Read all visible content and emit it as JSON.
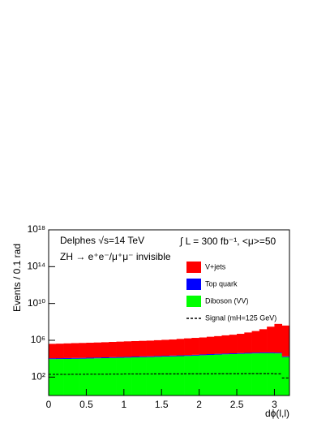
{
  "chart_data": {
    "type": "stacked-histogram",
    "x_label": "dϕ(l,l)",
    "y_label": "Events / 0.1 rad",
    "annotations": [
      "Delphes √s=14 TeV",
      "ZH → e⁺e⁻/μ⁺μ⁻ invisible",
      "∫ L = 300 fb⁻¹, <μ>=50"
    ],
    "bins": [
      0,
      0.1,
      0.2,
      0.3,
      0.4,
      0.5,
      0.6,
      0.7,
      0.8,
      0.9,
      1,
      1.1,
      1.2,
      1.3,
      1.4,
      1.5,
      1.6,
      1.7,
      1.8,
      1.9,
      2,
      2.1,
      2.2,
      2.3,
      2.4,
      2.5,
      2.6,
      2.7,
      2.8,
      2.9,
      3,
      3.1,
      3.2
    ],
    "series": [
      {
        "name": "Diboson (VV)",
        "color": "#00ff00",
        "values": [
          9000,
          9200,
          9500,
          9800,
          10000,
          10500,
          11000,
          11500,
          12000,
          12500,
          13000,
          14000,
          14500,
          15000,
          16000,
          17000,
          18000,
          19000,
          20000,
          22000,
          24000,
          26000,
          28000,
          30000,
          32000,
          34000,
          36000,
          38000,
          40000,
          40000,
          38000,
          15000
        ]
      },
      {
        "name": "Top quark",
        "color": "#0000ff",
        "values": [
          2000,
          2000,
          2100,
          2100,
          2200,
          2300,
          2400,
          2500,
          2600,
          2700,
          2800,
          3000,
          3100,
          3200,
          3400,
          3600,
          3800,
          4000,
          4200,
          4600,
          5000,
          5400,
          5800,
          6200,
          6600,
          7000,
          7400,
          7800,
          8000,
          8000,
          7600,
          3000
        ]
      },
      {
        "name": "V+jets",
        "color": "#ff0000",
        "values": [
          400000,
          420000,
          450000,
          480000,
          500000,
          530000,
          560000,
          600000,
          650000,
          700000,
          750000,
          800000,
          850000,
          900000,
          1000000,
          1100000,
          1200000,
          1400000,
          1600000,
          1800000,
          2000000,
          2400000,
          2800000,
          3400000,
          4000000,
          5000000,
          7000000,
          10000000,
          16000000,
          30000000,
          60000000,
          40000000
        ]
      },
      {
        "name": "Signal (mH=125 GeV)",
        "color": "#000000",
        "style": "dashed",
        "values": [
          200,
          200,
          200,
          205,
          205,
          210,
          210,
          210,
          215,
          215,
          220,
          220,
          220,
          220,
          225,
          225,
          225,
          225,
          230,
          230,
          230,
          230,
          235,
          235,
          235,
          235,
          240,
          240,
          240,
          240,
          230,
          80
        ]
      }
    ],
    "legend_order": [
      2,
      1,
      0,
      3
    ],
    "xlim": [
      0,
      3.2
    ],
    "xticks": [
      0,
      0.5,
      1,
      1.5,
      2,
      2.5,
      3
    ],
    "ylim": [
      1,
      1e+18
    ],
    "log_y": true,
    "yticks": [
      {
        "value": 100,
        "label": "10²"
      },
      {
        "value": 1000000,
        "label": "10⁶"
      },
      {
        "value": 10000000000,
        "label": "10¹⁰"
      },
      {
        "value": 100000000000000,
        "label": "10¹⁴"
      },
      {
        "value": 1e+18,
        "label": "10¹⁸"
      }
    ]
  }
}
